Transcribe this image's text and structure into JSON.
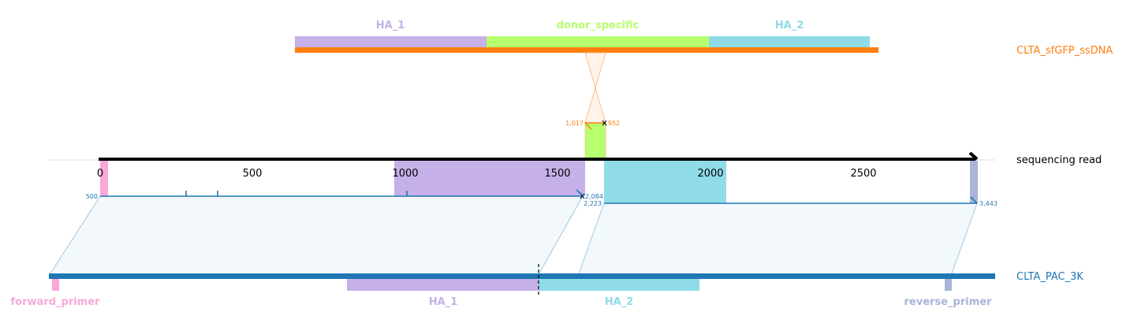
{
  "donor": {
    "name": "CLTA_sfGFP_ssDNA",
    "color": "#ff7f0e",
    "features": [
      {
        "label": "HA_1",
        "color": "#c5b0e8"
      },
      {
        "label": "donor_specific",
        "color": "#b6ff6f"
      },
      {
        "label": "HA_2",
        "color": "#8fdbe8"
      }
    ],
    "alignment_labels": [
      "1,017",
      "952"
    ]
  },
  "read": {
    "name": "sequencing read",
    "color": "#000000",
    "ticks": [
      "0",
      "500",
      "1000",
      "1500",
      "2000",
      "2500"
    ],
    "alignment_labels": [
      "500",
      "2,084",
      "2,223",
      "3,443"
    ]
  },
  "reference": {
    "name": "CLTA_PAC_3K",
    "color": "#1f77b4",
    "features": [
      {
        "label": "forward_primer",
        "color": "#f7a8d8"
      },
      {
        "label": "HA_1",
        "color": "#c5b0e8"
      },
      {
        "label": "HA_2",
        "color": "#8fdbe8"
      },
      {
        "label": "reverse_primer",
        "color": "#a8b4d8"
      }
    ]
  },
  "colors": {
    "alignment_blue": "#1f77b4",
    "alignment_fill": "#e8f2f8",
    "alignment_edge": "#9ecae1",
    "donor_cross": "#ffbb88"
  }
}
